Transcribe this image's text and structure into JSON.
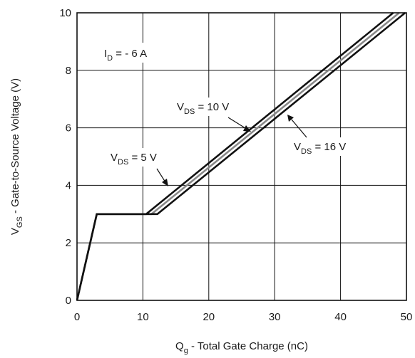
{
  "chart_data": {
    "type": "line",
    "xlabel": {
      "main": "Q",
      "sub": "g",
      "rest": " - Total Gate Charge (nC)"
    },
    "ylabel": {
      "main": "V",
      "sub": "GS",
      "rest": " - Gate-to-Source Voltage (V)"
    },
    "xlim": [
      0,
      50
    ],
    "ylim": [
      0,
      10
    ],
    "xticks": [
      0,
      10,
      20,
      30,
      40,
      50
    ],
    "yticks": [
      0,
      2,
      4,
      6,
      8,
      10
    ],
    "grid": true,
    "annotations": {
      "id": {
        "main": "I",
        "sub": "D",
        "rest": " = - 6 A"
      },
      "vds5": {
        "main": "V",
        "sub": "DS",
        "rest": " = 5 V"
      },
      "vds10": {
        "main": "V",
        "sub": "DS",
        "rest": " = 10 V"
      },
      "vds16": {
        "main": "V",
        "sub": "DS",
        "rest": " = 16 V"
      }
    },
    "series": [
      {
        "name": "VDS = 5 V",
        "color": "#111111",
        "points": [
          [
            0,
            0
          ],
          [
            3,
            3
          ],
          [
            10.5,
            3
          ],
          [
            48,
            10
          ]
        ]
      },
      {
        "name": "VDS = 10 V",
        "color": "#888888",
        "points": [
          [
            0,
            0
          ],
          [
            3,
            3
          ],
          [
            11.3,
            3
          ],
          [
            48.9,
            10
          ]
        ]
      },
      {
        "name": "VDS = 16 V",
        "color": "#111111",
        "points": [
          [
            0,
            0
          ],
          [
            3,
            3
          ],
          [
            12.2,
            3
          ],
          [
            49.8,
            10
          ]
        ]
      }
    ]
  }
}
